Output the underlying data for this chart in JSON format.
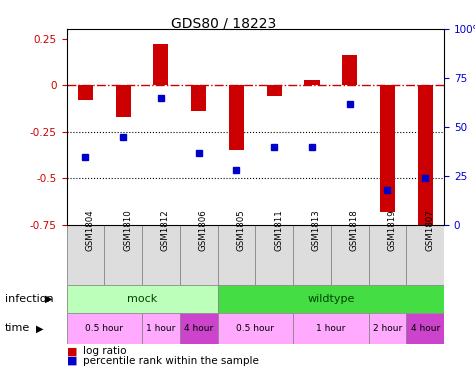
{
  "title": "GDS80 / 18223",
  "samples": [
    "GSM1804",
    "GSM1810",
    "GSM1812",
    "GSM1806",
    "GSM1805",
    "GSM1811",
    "GSM1813",
    "GSM1818",
    "GSM1819",
    "GSM1807"
  ],
  "log_ratio": [
    -0.08,
    -0.17,
    0.22,
    -0.14,
    -0.35,
    -0.06,
    0.03,
    0.16,
    -0.68,
    -0.77
  ],
  "percentile": [
    35,
    45,
    65,
    37,
    28,
    40,
    40,
    62,
    18,
    24
  ],
  "ylim_left": [
    -0.75,
    0.3
  ],
  "ylim_right": [
    0,
    100
  ],
  "bar_color": "#cc0000",
  "dot_color": "#0000cc",
  "infection_groups": [
    {
      "label": "mock",
      "start": 0,
      "end": 4,
      "color": "#bbffbb"
    },
    {
      "label": "wildtype",
      "start": 4,
      "end": 10,
      "color": "#44dd44"
    }
  ],
  "time_groups": [
    {
      "label": "0.5 hour",
      "start": 0,
      "end": 2,
      "color": "#ffaaff"
    },
    {
      "label": "1 hour",
      "start": 2,
      "end": 3,
      "color": "#ffaaff"
    },
    {
      "label": "4 hour",
      "start": 3,
      "end": 4,
      "color": "#cc44cc"
    },
    {
      "label": "0.5 hour",
      "start": 4,
      "end": 6,
      "color": "#ffaaff"
    },
    {
      "label": "1 hour",
      "start": 6,
      "end": 8,
      "color": "#ffaaff"
    },
    {
      "label": "2 hour",
      "start": 8,
      "end": 9,
      "color": "#ffaaff"
    },
    {
      "label": "4 hour",
      "start": 9,
      "end": 10,
      "color": "#cc44cc"
    }
  ],
  "infection_label": "infection",
  "time_label": "time",
  "legend_items": [
    "log ratio",
    "percentile rank within the sample"
  ],
  "legend_colors": [
    "#cc0000",
    "#0000cc"
  ],
  "title_fontsize": 10
}
